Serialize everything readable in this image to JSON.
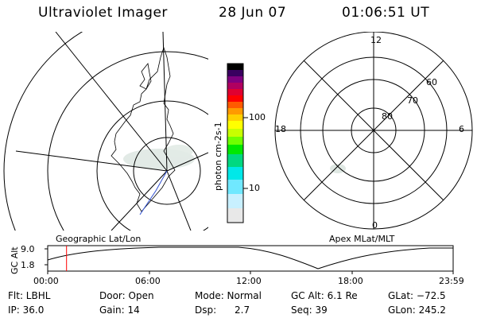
{
  "header": {
    "title": "Ultraviolet Imager",
    "date": "28 Jun 07",
    "time": "01:06:51 UT"
  },
  "colorbar": {
    "unit_label": "photon cm-2s-1",
    "tick_100": "100",
    "tick_10": "10",
    "colors": [
      "#000000",
      "#3a0060",
      "#800080",
      "#b00060",
      "#e00030",
      "#ff0000",
      "#ff5a00",
      "#ff9a00",
      "#ffd000",
      "#ffff00",
      "#c8ff00",
      "#70ff00",
      "#00e800",
      "#00d880",
      "#00e8e8",
      "#70e8ff",
      "#c8f0ff",
      "#e8e8e8"
    ]
  },
  "left_map": {
    "label": "Geographic Lat/Lon"
  },
  "right_map": {
    "label": "Apex MLat/MLT",
    "mlt_12": "12",
    "mlt_18": "18",
    "mlt_6": "6",
    "mlt_0": "0",
    "lat_60": "60",
    "lat_70": "70",
    "lat_80": "80"
  },
  "altitude_plot": {
    "ylabel": "GC Alt",
    "ytick_top": "9.0",
    "ytick_bottom": "1.8",
    "xticks": [
      "00:00",
      "06:00",
      "12:00",
      "18:00",
      "23:59"
    ],
    "marker_time_hours": 1.114,
    "marker_color": "#ff0000"
  },
  "info_row1": {
    "filter": "Flt: LBHL",
    "door": "Door: Open",
    "mode": "Mode: Normal",
    "gc_alt": "GC Alt: 6.1 Re",
    "glat": "GLat: −72.5"
  },
  "info_row2": {
    "ip": "IP: 36.0",
    "gain": "Gain: 14",
    "dsp_label": "Dsp:",
    "dsp_value": "2.7",
    "seq": "Seq: 39",
    "glon": "GLon: 245.2"
  }
}
